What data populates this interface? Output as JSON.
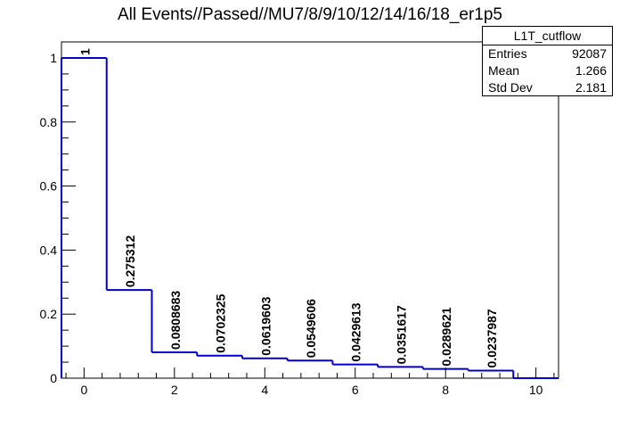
{
  "chart_data": {
    "type": "histogram-step",
    "title": "All Events//Passed//MU7/8/9/10/12/14/16/18_er1p5",
    "xlabel": "",
    "ylabel": "",
    "xlim": [
      -0.5,
      10.5
    ],
    "ylim": [
      0,
      1.05
    ],
    "x_ticks": [
      0,
      2,
      4,
      6,
      8,
      10
    ],
    "y_ticks": [
      0,
      0.2,
      0.4,
      0.6,
      0.8,
      1
    ],
    "bins": [
      {
        "center": 0,
        "value": 1,
        "label": "1"
      },
      {
        "center": 1,
        "value": 0.275312,
        "label": "0.275312"
      },
      {
        "center": 2,
        "value": 0.0808683,
        "label": "0.0808683"
      },
      {
        "center": 3,
        "value": 0.0702325,
        "label": "0.0702325"
      },
      {
        "center": 4,
        "value": 0.0619603,
        "label": "0.0619603"
      },
      {
        "center": 5,
        "value": 0.0549606,
        "label": "0.0549606"
      },
      {
        "center": 6,
        "value": 0.0429613,
        "label": "0.0429613"
      },
      {
        "center": 7,
        "value": 0.0351617,
        "label": "0.0351617"
      },
      {
        "center": 8,
        "value": 0.0289621,
        "label": "0.0289621"
      },
      {
        "center": 9,
        "value": 0.0237987,
        "label": "0.0237987"
      },
      {
        "center": 10,
        "value": 0,
        "label": ""
      }
    ],
    "line_color": "#0000cc",
    "stats": {
      "name": "L1T_cutflow",
      "entries_label": "Entries",
      "entries": "92087",
      "mean_label": "Mean",
      "mean": "1.266",
      "stddev_label": "Std Dev",
      "stddev": "2.181"
    }
  }
}
